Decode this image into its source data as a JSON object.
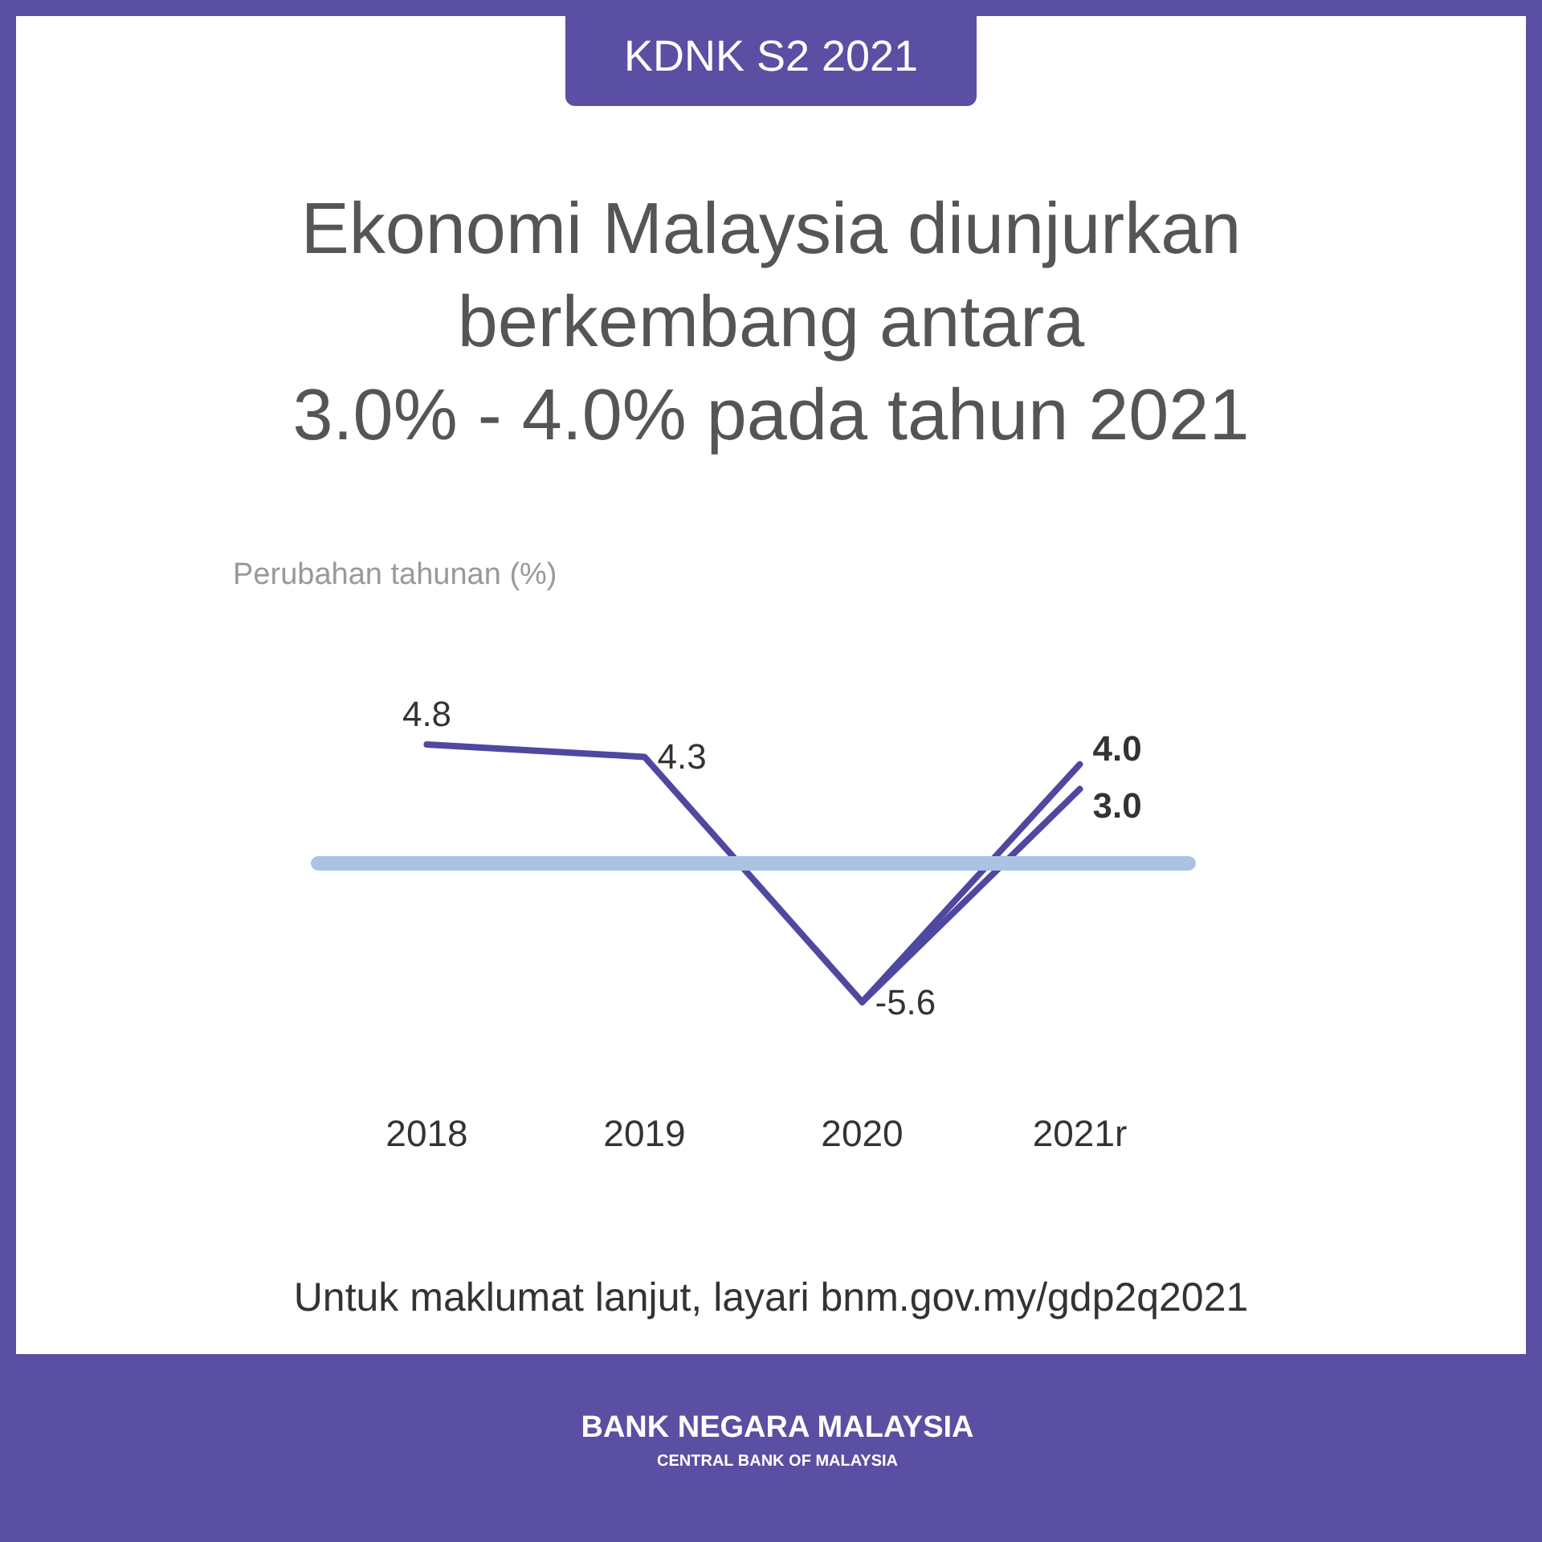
{
  "chart_data": {
    "type": "line",
    "title": "Ekonomi Malaysia diunjurkan\nberkembang antara\n3.0% - 4.0% pada tahun 2021",
    "subtitle": "KDNK S2 2021",
    "ylabel": "Perubahan tahunan (%)",
    "categories": [
      "2018",
      "2019",
      "2020",
      "2021r"
    ],
    "series": [
      {
        "color": "#4f48a0",
        "values": [
          4.8,
          4.3,
          -5.6,
          4.0
        ],
        "value_labels": [
          "4.8",
          "4.3",
          "-5.6",
          "4.0"
        ]
      },
      {
        "color": "#4f48a0",
        "values": [
          null,
          null,
          -5.6,
          3.0
        ],
        "value_labels": [
          null,
          null,
          null,
          "3.0"
        ]
      }
    ],
    "ref_lines": [
      {
        "axis": "y",
        "value": 0,
        "color": "#a9c4e2"
      }
    ],
    "tick_labels": "x",
    "grid": false,
    "marker": "none",
    "line_style": "solid",
    "annotations": [
      "Untuk maklumat lanjut, layari bnm.gov.my/gdp2q2021",
      "BANK NEGARA MALAYSIA",
      "CENTRAL BANK OF MALAYSIA"
    ]
  }
}
